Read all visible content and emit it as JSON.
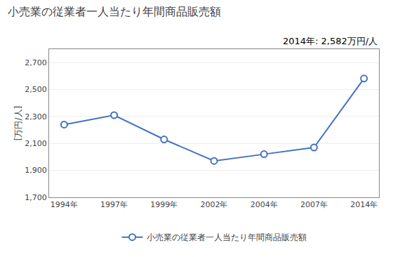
{
  "chart_data": {
    "type": "line",
    "title": "小売業の従業者一人当たり年間商品販売額",
    "ylabel": "[万円/人]",
    "annotation": "2014年: 2,582万円/人",
    "categories": [
      "1994年",
      "1997年",
      "1999年",
      "2002年",
      "2004年",
      "2007年",
      "2014年"
    ],
    "series": [
      {
        "name": "小売業の従業者一人当たり年間商品販売額",
        "color": "#4472C4",
        "marker": "circle",
        "values": [
          2240,
          2310,
          2130,
          1970,
          2020,
          2070,
          2582
        ]
      }
    ],
    "ylim": [
      1700,
      2800
    ],
    "yticks": [
      {
        "value": 1700,
        "label": "1,700"
      },
      {
        "value": 1900,
        "label": "1,900"
      },
      {
        "value": 2100,
        "label": "2,100"
      },
      {
        "value": 2300,
        "label": "2,300"
      },
      {
        "value": 2500,
        "label": "2,500"
      },
      {
        "value": 2700,
        "label": "2,700"
      }
    ],
    "grid": true,
    "legend": "bottom"
  }
}
